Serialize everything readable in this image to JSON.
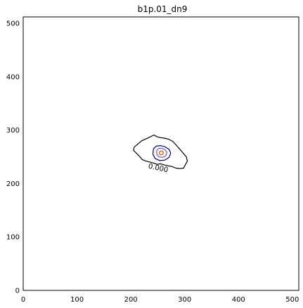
{
  "chart_data": {
    "type": "contour",
    "title": "b1p.01_dn9",
    "xlabel": "",
    "ylabel": "",
    "xlim": [
      0,
      512
    ],
    "ylim": [
      0,
      512
    ],
    "x_ticks": [
      0,
      100,
      200,
      300,
      400,
      500
    ],
    "y_ticks": [
      0,
      100,
      200,
      300,
      400,
      500
    ],
    "grid": false,
    "contours": [
      {
        "level_label": "0.000",
        "color": "#000000",
        "points": [
          [
            206,
            268
          ],
          [
            220,
            280
          ],
          [
            233,
            286
          ],
          [
            243,
            291
          ],
          [
            248,
            288
          ],
          [
            255,
            286
          ],
          [
            262,
            285
          ],
          [
            270,
            283
          ],
          [
            278,
            279
          ],
          [
            286,
            270
          ],
          [
            293,
            262
          ],
          [
            298,
            256
          ],
          [
            303,
            250
          ],
          [
            305,
            242
          ],
          [
            301,
            235
          ],
          [
            298,
            229
          ],
          [
            291,
            228
          ],
          [
            284,
            229
          ],
          [
            276,
            232
          ],
          [
            270,
            233
          ],
          [
            262,
            235
          ],
          [
            255,
            237
          ],
          [
            249,
            236
          ],
          [
            243,
            238
          ],
          [
            236,
            240
          ],
          [
            228,
            242
          ],
          [
            221,
            245
          ],
          [
            216,
            251
          ],
          [
            210,
            257
          ],
          [
            205,
            262
          ],
          [
            206,
            268
          ]
        ]
      },
      {
        "level_label": "",
        "color": "#00008b",
        "points": [
          [
            242,
            265
          ],
          [
            247,
            270
          ],
          [
            255,
            271
          ],
          [
            263,
            269
          ],
          [
            271,
            264
          ],
          [
            274,
            257
          ],
          [
            271,
            249
          ],
          [
            263,
            244
          ],
          [
            254,
            243
          ],
          [
            245,
            247
          ],
          [
            241,
            255
          ],
          [
            242,
            265
          ]
        ]
      },
      {
        "level_label": "",
        "color": "#6a5acd",
        "points": [
          [
            248,
            262
          ],
          [
            252,
            266
          ],
          [
            258,
            266
          ],
          [
            264,
            263
          ],
          [
            267,
            258
          ],
          [
            265,
            252
          ],
          [
            259,
            249
          ],
          [
            252,
            250
          ],
          [
            248,
            255
          ],
          [
            248,
            262
          ]
        ]
      },
      {
        "level_label": "",
        "color": "#ff4500",
        "points": [
          [
            253,
            259
          ],
          [
            255,
            261
          ],
          [
            258,
            261
          ],
          [
            260,
            259
          ],
          [
            260,
            256
          ],
          [
            258,
            254
          ],
          [
            255,
            254
          ],
          [
            253,
            256
          ],
          [
            253,
            259
          ]
        ]
      }
    ],
    "contour_label_position": [
      250,
      225
    ]
  }
}
